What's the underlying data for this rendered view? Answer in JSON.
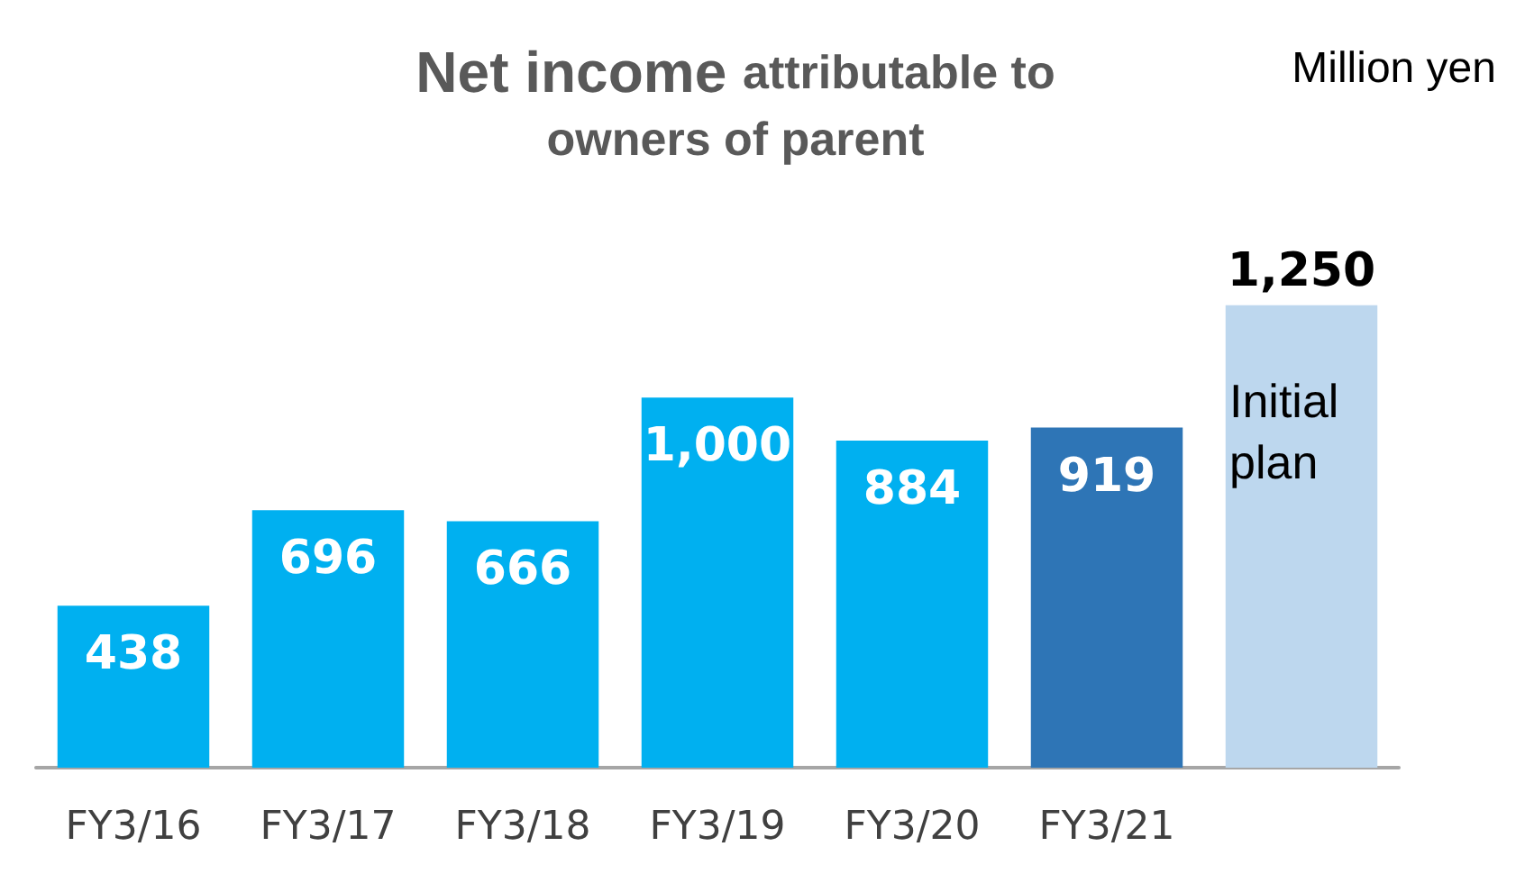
{
  "chart_data": {
    "type": "bar",
    "title": "Net income attributable to owners of parent",
    "ylabel": "Million yen",
    "annotations": [
      "Initial plan"
    ],
    "categories": [
      "FY3/16",
      "FY3/17",
      "FY3/18",
      "FY3/19",
      "FY3/20",
      "FY3/21",
      null
    ],
    "values": [
      438,
      696,
      666,
      1000,
      884,
      919,
      1250
    ],
    "colors": [
      "#00b0f0",
      "#00b0f0",
      "#00b0f0",
      "#00b0f0",
      "#00b0f0",
      "#2e75b6",
      "#bdd7ee"
    ],
    "value_labels": [
      "438",
      "696",
      "666",
      "1,000",
      "884",
      "919",
      "1,250"
    ],
    "data_labels": false
  }
}
